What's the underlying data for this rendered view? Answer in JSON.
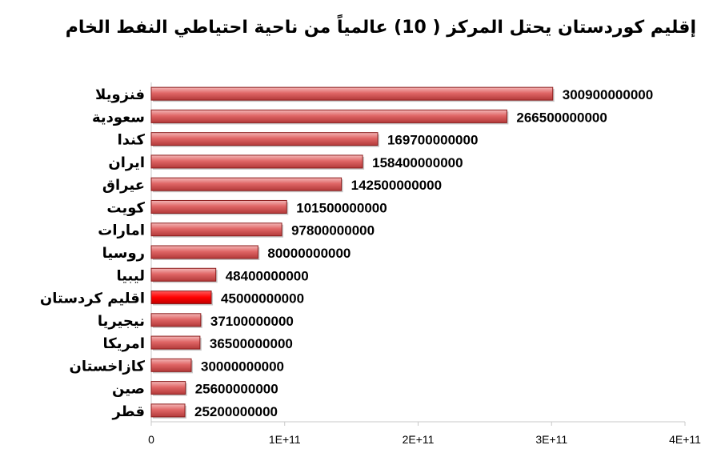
{
  "chart_data": {
    "type": "bar",
    "orientation": "horizontal",
    "title": "إقليم كوردستان يحتل المركز ( 10) عالمياً من ناحية احتياطي النفط الخام",
    "xlabel": "",
    "ylabel": "",
    "xlim": [
      0,
      400000000000
    ],
    "x_ticks": [
      "0",
      "1E+11",
      "2E+11",
      "3E+11",
      "4E+11"
    ],
    "categories": [
      "فنزويلا",
      "سعودية",
      "كندا",
      "ايران",
      "عيراق",
      "كويت",
      "امارات",
      "روسيا",
      "ليبيا",
      "اقليم كردستان",
      "نيجيريا",
      "امريكا",
      "كازاخستان",
      "صين",
      "قطر"
    ],
    "values": [
      300900000000,
      266500000000,
      169700000000,
      158400000000,
      142500000000,
      101500000000,
      97800000000,
      80000000000,
      48400000000,
      45000000000,
      37100000000,
      36500000000,
      30000000000,
      25600000000,
      25200000000
    ],
    "value_labels": [
      "300900000000",
      "266500000000",
      "169700000000",
      "158400000000",
      "142500000000",
      "101500000000",
      "97800000000",
      "80000000000",
      "48400000000",
      "45000000000",
      "37100000000",
      "36500000000",
      "30000000000",
      "25600000000",
      "25200000000"
    ],
    "highlight_index": 9,
    "colors": {
      "bar": "#e06666",
      "bar_edge": "#8b1c1c",
      "highlight": "#ff0000",
      "axis": "#c8c8c8"
    },
    "grid": false,
    "legend": "none"
  }
}
